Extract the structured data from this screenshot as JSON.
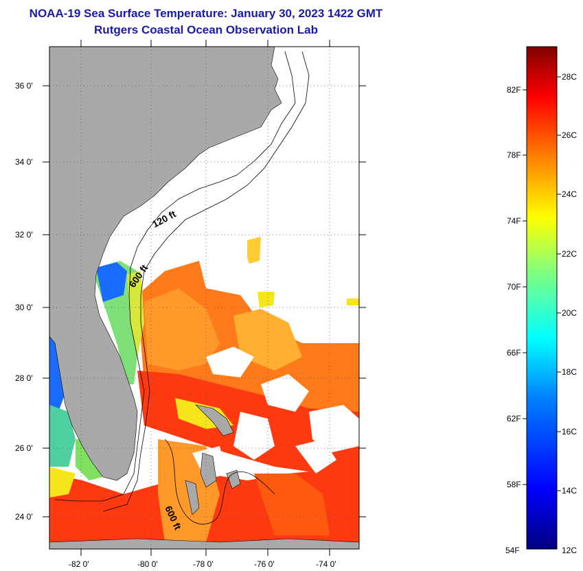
{
  "title": {
    "line1": "NOAA-19 Sea Surface Temperature:  January 30, 2023 1422 GMT",
    "line2": "Rutgers Coastal Ocean Observation Lab"
  },
  "map": {
    "lat_labels": [
      "36 0'",
      "34 0'",
      "32 0'",
      "30 0'",
      "28 0'",
      "26 0'",
      "24 0'"
    ],
    "lon_labels": [
      "-82 0'",
      "-80 0'",
      "-78 0'",
      "-76 0'",
      "-74 0'"
    ],
    "contours": [
      {
        "label": "120 ft"
      },
      {
        "label": "600 ft"
      },
      {
        "label": "600 ft"
      }
    ],
    "colors": {
      "land": "#a9a9a9",
      "cloud": "#ffffff",
      "warm": "#ff2a00",
      "orange": "#ff8c1a",
      "yellow": "#f5e51a",
      "cool": "#1a6bff"
    }
  },
  "colorbar": {
    "fahrenheit_labels": [
      "82F",
      "78F",
      "74F",
      "70F",
      "66F",
      "62F",
      "58F",
      "54F"
    ],
    "celsius_labels": [
      "28C",
      "26C",
      "24C",
      "22C",
      "20C",
      "18C",
      "16C",
      "14C",
      "12C"
    ],
    "range_f": [
      54,
      84
    ],
    "range_c": [
      12,
      29
    ]
  }
}
